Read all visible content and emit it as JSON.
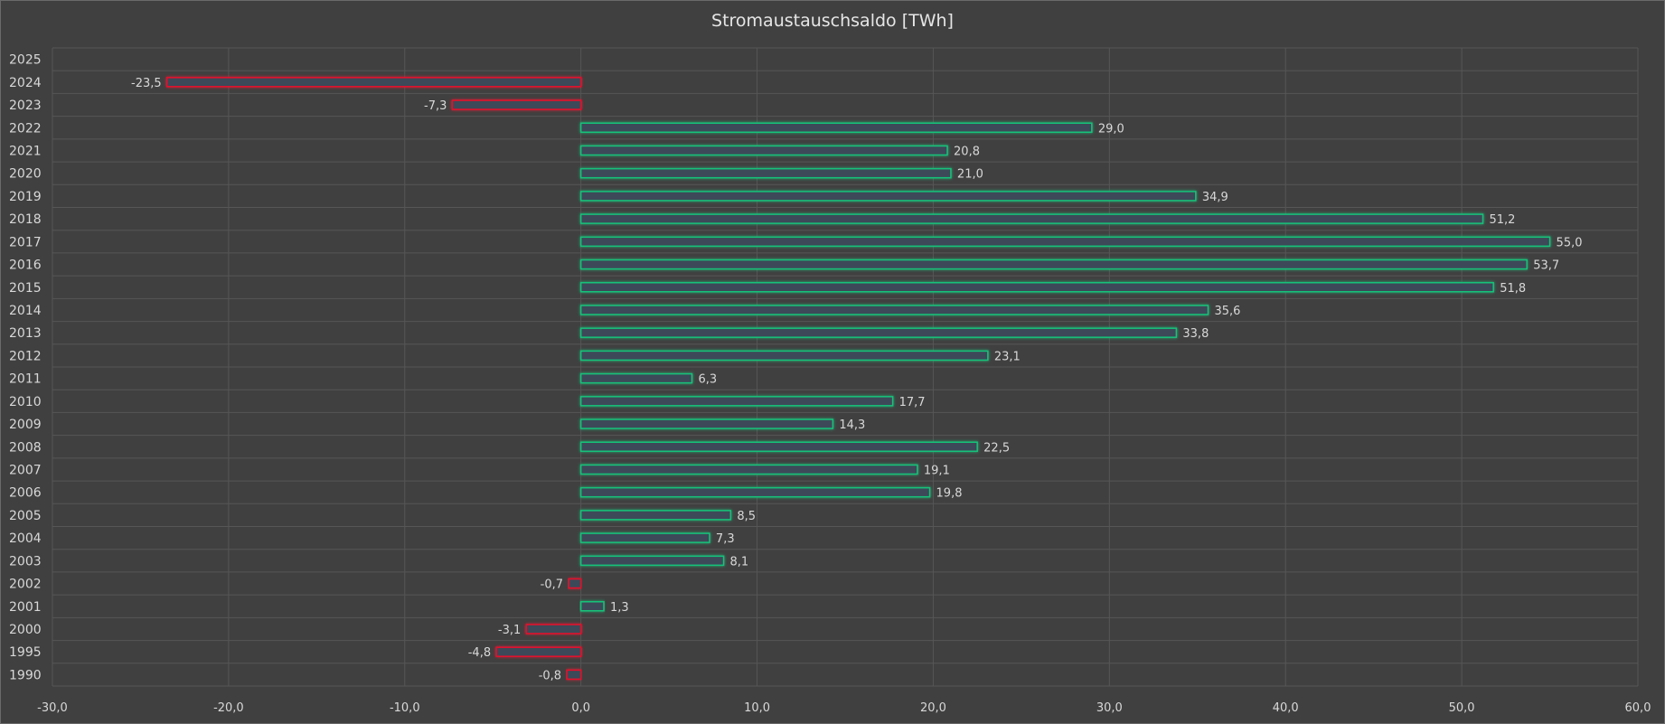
{
  "chart_data": {
    "type": "bar",
    "orientation": "horizontal",
    "title": "Stromaustauschsaldo  [TWh]",
    "xlabel": "",
    "ylabel": "",
    "xlim": [
      -30,
      60
    ],
    "xticks": [
      "-30,0",
      "-20,0",
      "-10,0",
      "0,0",
      "10,0",
      "20,0",
      "30,0",
      "40,0",
      "50,0",
      "60,0"
    ],
    "grid": true,
    "categories": [
      "2025",
      "2024",
      "2023",
      "2022",
      "2021",
      "2020",
      "2019",
      "2018",
      "2017",
      "2016",
      "2015",
      "2014",
      "2013",
      "2012",
      "2011",
      "2010",
      "2009",
      "2008",
      "2007",
      "2006",
      "2005",
      "2004",
      "2003",
      "2002",
      "2001",
      "2000",
      "1995",
      "1990"
    ],
    "values": [
      null,
      -23.5,
      -7.3,
      29.0,
      20.8,
      21.0,
      34.9,
      51.2,
      55.0,
      53.7,
      51.8,
      35.6,
      33.8,
      23.1,
      6.3,
      17.7,
      14.3,
      22.5,
      19.1,
      19.8,
      8.5,
      7.3,
      8.1,
      -0.7,
      1.3,
      -3.1,
      -4.8,
      -0.8
    ],
    "value_labels": [
      "",
      "-23,5",
      "-7,3",
      "29,0",
      "20,8",
      "21,0",
      "34,9",
      "51,2",
      "55,0",
      "53,7",
      "51,8",
      "35,6",
      "33,8",
      "23,1",
      "6,3",
      "17,7",
      "14,3",
      "22,5",
      "19,1",
      "19,8",
      "8,5",
      "7,3",
      "8,1",
      "-0,7",
      "1,3",
      "-3,1",
      "-4,8",
      "-0,8"
    ],
    "colors": {
      "positive": "#19c27a",
      "negative": "#e8102a",
      "fill": "#3e4a58",
      "grid": "#565656"
    }
  }
}
